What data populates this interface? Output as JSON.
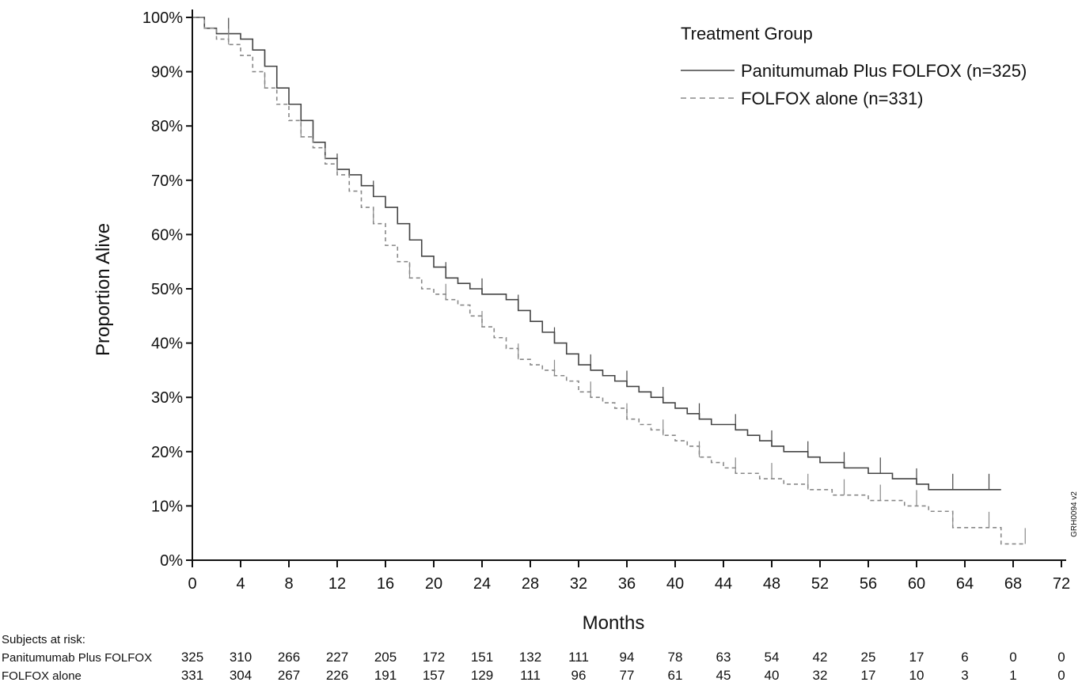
{
  "chart_data": {
    "type": "line",
    "xlabel": "Months",
    "ylabel": "Proportion Alive",
    "xlim": [
      0,
      72
    ],
    "ylim": [
      0,
      100
    ],
    "x_ticks": [
      "0",
      "4",
      "8",
      "12",
      "16",
      "20",
      "24",
      "28",
      "32",
      "36",
      "40",
      "44",
      "48",
      "52",
      "56",
      "60",
      "64",
      "68",
      "72"
    ],
    "y_ticks": [
      "0%",
      "10%",
      "20%",
      "30%",
      "40%",
      "50%",
      "60%",
      "70%",
      "80%",
      "90%",
      "100%"
    ],
    "grid": false,
    "legend": {
      "title": "Treatment Group",
      "placement": "top-right"
    },
    "series": [
      {
        "name": "Panitumumab Plus FOLFOX (n=325)",
        "style": "solid",
        "color": "#444444",
        "x": [
          0,
          1,
          2,
          3,
          4,
          5,
          6,
          7,
          8,
          9,
          10,
          11,
          12,
          13,
          14,
          15,
          16,
          17,
          18,
          19,
          20,
          21,
          22,
          23,
          24,
          25,
          26,
          27,
          28,
          29,
          30,
          31,
          32,
          33,
          34,
          35,
          36,
          37,
          38,
          39,
          40,
          41,
          42,
          43,
          44,
          45,
          46,
          47,
          48,
          49,
          50,
          51,
          52,
          53,
          54,
          55,
          56,
          57,
          58,
          59,
          60,
          61,
          62,
          63,
          64,
          65,
          66,
          67
        ],
        "y": [
          100,
          98,
          97,
          97,
          96,
          94,
          91,
          87,
          84,
          81,
          77,
          74,
          72,
          71,
          69,
          67,
          65,
          62,
          59,
          56,
          54,
          52,
          51,
          50,
          49,
          49,
          48,
          46,
          44,
          42,
          40,
          38,
          36,
          35,
          34,
          33,
          32,
          31,
          30,
          29,
          28,
          27,
          26,
          25,
          25,
          24,
          23,
          22,
          21,
          20,
          20,
          19,
          18,
          18,
          17,
          17,
          16,
          16,
          15,
          15,
          14,
          13,
          13,
          13,
          13,
          13,
          13,
          13
        ]
      },
      {
        "name": "FOLFOX alone (n=331)",
        "style": "dashed",
        "color": "#888888",
        "x": [
          0,
          1,
          2,
          3,
          4,
          5,
          6,
          7,
          8,
          9,
          10,
          11,
          12,
          13,
          14,
          15,
          16,
          17,
          18,
          19,
          20,
          21,
          22,
          23,
          24,
          25,
          26,
          27,
          28,
          29,
          30,
          31,
          32,
          33,
          34,
          35,
          36,
          37,
          38,
          39,
          40,
          41,
          42,
          43,
          44,
          45,
          46,
          47,
          48,
          49,
          50,
          51,
          52,
          53,
          54,
          55,
          56,
          57,
          58,
          59,
          60,
          61,
          62,
          63,
          64,
          65,
          66,
          67,
          68,
          69
        ],
        "y": [
          100,
          98,
          96,
          95,
          93,
          90,
          87,
          84,
          81,
          78,
          76,
          73,
          71,
          68,
          65,
          62,
          58,
          55,
          52,
          50,
          49,
          48,
          47,
          45,
          43,
          41,
          39,
          37,
          36,
          35,
          34,
          33,
          31,
          30,
          29,
          28,
          26,
          25,
          24,
          23,
          22,
          21,
          19,
          18,
          17,
          16,
          16,
          15,
          15,
          14,
          14,
          13,
          13,
          12,
          12,
          12,
          11,
          11,
          11,
          10,
          10,
          9,
          9,
          6,
          6,
          6,
          6,
          3,
          3,
          3
        ]
      }
    ],
    "risk_table": {
      "title": "Subjects at risk:",
      "rows": [
        {
          "label": "Panitumumab Plus FOLFOX",
          "values": [
            "325",
            "310",
            "266",
            "227",
            "205",
            "172",
            "151",
            "132",
            "111",
            "94",
            "78",
            "63",
            "54",
            "42",
            "25",
            "17",
            "6",
            "0",
            "0"
          ]
        },
        {
          "label": "FOLFOX alone",
          "values": [
            "331",
            "304",
            "267",
            "226",
            "191",
            "157",
            "129",
            "111",
            "96",
            "77",
            "61",
            "45",
            "40",
            "32",
            "17",
            "10",
            "3",
            "1",
            "0"
          ]
        }
      ]
    },
    "watermark": "GRH0094 v2"
  }
}
